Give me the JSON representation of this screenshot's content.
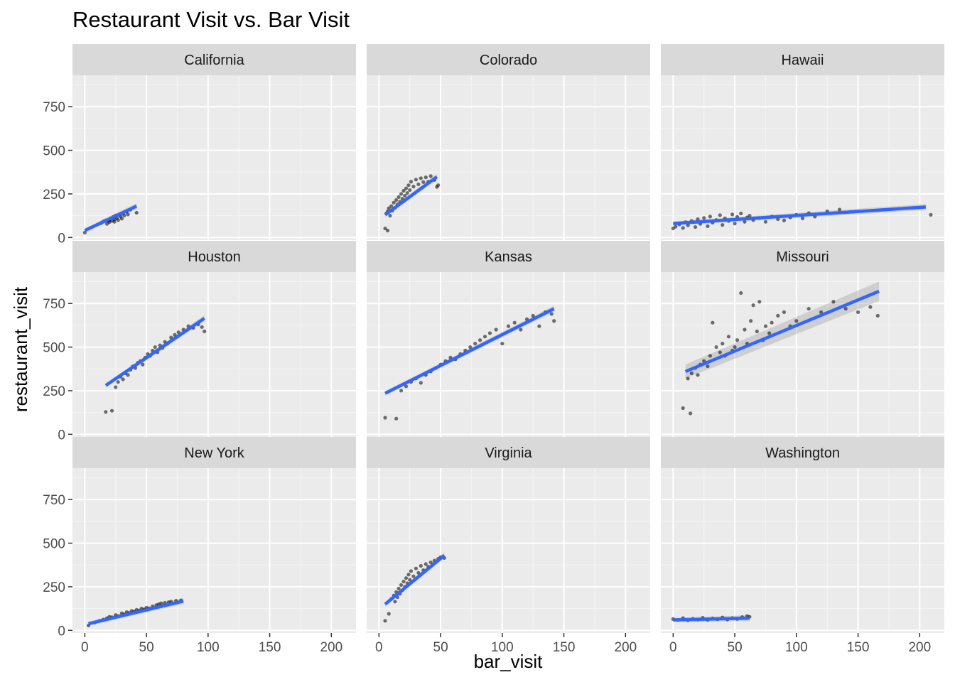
{
  "chart_data": {
    "type": "scatter",
    "title": "Restaurant Visit vs. Bar Visit",
    "xlabel": "bar_visit",
    "ylabel": "restaurant_visit",
    "xlim": [
      -10,
      220
    ],
    "ylim": [
      -15,
      930
    ],
    "xticks": [
      0,
      50,
      100,
      150,
      200
    ],
    "yticks": [
      0,
      250,
      500,
      750
    ],
    "grid": true,
    "colors": {
      "point": "#000000",
      "fit": "#3366FF",
      "panel": "#EBEBEB",
      "strip": "#D9D9D9",
      "ribbon": "#999999"
    },
    "facets": [
      {
        "name": "California",
        "fit": [
          [
            0,
            40
          ],
          [
            42,
            180
          ]
        ],
        "points": [
          [
            0,
            28
          ],
          [
            13,
            82
          ],
          [
            15,
            92
          ],
          [
            17,
            98
          ],
          [
            18,
            78
          ],
          [
            19,
            95
          ],
          [
            20,
            102
          ],
          [
            20,
            88
          ],
          [
            21,
            110
          ],
          [
            22,
            96
          ],
          [
            23,
            118
          ],
          [
            24,
            104
          ],
          [
            24,
            90
          ],
          [
            25,
            126
          ],
          [
            26,
            112
          ],
          [
            27,
            100
          ],
          [
            28,
            132
          ],
          [
            29,
            120
          ],
          [
            30,
            108
          ],
          [
            31,
            140
          ],
          [
            32,
            126
          ],
          [
            34,
            148
          ],
          [
            35,
            132
          ],
          [
            37,
            160
          ],
          [
            42,
            142
          ]
        ]
      },
      {
        "name": "Colorado",
        "fit": [
          [
            5,
            130
          ],
          [
            47,
            348
          ]
        ],
        "points": [
          [
            5,
            52
          ],
          [
            7,
            40
          ],
          [
            6,
            138
          ],
          [
            7,
            150
          ],
          [
            8,
            168
          ],
          [
            9,
            125
          ],
          [
            10,
            180
          ],
          [
            11,
            155
          ],
          [
            12,
            200
          ],
          [
            13,
            170
          ],
          [
            14,
            215
          ],
          [
            15,
            190
          ],
          [
            16,
            232
          ],
          [
            17,
            205
          ],
          [
            18,
            250
          ],
          [
            19,
            222
          ],
          [
            20,
            268
          ],
          [
            21,
            240
          ],
          [
            22,
            282
          ],
          [
            23,
            255
          ],
          [
            24,
            300
          ],
          [
            25,
            272
          ],
          [
            26,
            320
          ],
          [
            28,
            292
          ],
          [
            30,
            332
          ],
          [
            32,
            305
          ],
          [
            34,
            340
          ],
          [
            36,
            318
          ],
          [
            38,
            345
          ],
          [
            40,
            320
          ],
          [
            42,
            352
          ],
          [
            45,
            330
          ],
          [
            47,
            290
          ],
          [
            48,
            300
          ]
        ]
      },
      {
        "name": "Hawaii",
        "fit": [
          [
            0,
            80
          ],
          [
            205,
            175
          ]
        ],
        "points": [
          [
            0,
            52
          ],
          [
            2,
            62
          ],
          [
            5,
            75
          ],
          [
            8,
            55
          ],
          [
            10,
            88
          ],
          [
            12,
            70
          ],
          [
            15,
            95
          ],
          [
            18,
            60
          ],
          [
            20,
            105
          ],
          [
            22,
            78
          ],
          [
            25,
            112
          ],
          [
            28,
            65
          ],
          [
            30,
            120
          ],
          [
            32,
            85
          ],
          [
            35,
            100
          ],
          [
            38,
            128
          ],
          [
            40,
            72
          ],
          [
            42,
            110
          ],
          [
            45,
            95
          ],
          [
            48,
            132
          ],
          [
            50,
            80
          ],
          [
            52,
            118
          ],
          [
            55,
            138
          ],
          [
            58,
            90
          ],
          [
            60,
            115
          ],
          [
            62,
            125
          ],
          [
            65,
            100
          ],
          [
            70,
            112
          ],
          [
            75,
            90
          ],
          [
            80,
            120
          ],
          [
            85,
            105
          ],
          [
            90,
            98
          ],
          [
            95,
            115
          ],
          [
            100,
            130
          ],
          [
            105,
            110
          ],
          [
            110,
            140
          ],
          [
            115,
            120
          ],
          [
            125,
            150
          ],
          [
            135,
            160
          ],
          [
            209,
            130
          ]
        ]
      },
      {
        "name": "Houston",
        "fit": [
          [
            17,
            280
          ],
          [
            97,
            665
          ]
        ],
        "points": [
          [
            17,
            128
          ],
          [
            22,
            135
          ],
          [
            25,
            270
          ],
          [
            27,
            300
          ],
          [
            29,
            330
          ],
          [
            31,
            315
          ],
          [
            33,
            350
          ],
          [
            35,
            340
          ],
          [
            37,
            370
          ],
          [
            39,
            390
          ],
          [
            41,
            380
          ],
          [
            43,
            410
          ],
          [
            45,
            420
          ],
          [
            47,
            400
          ],
          [
            49,
            440
          ],
          [
            51,
            460
          ],
          [
            53,
            450
          ],
          [
            55,
            480
          ],
          [
            57,
            500
          ],
          [
            59,
            470
          ],
          [
            61,
            510
          ],
          [
            63,
            495
          ],
          [
            65,
            530
          ],
          [
            67,
            520
          ],
          [
            70,
            555
          ],
          [
            73,
            570
          ],
          [
            76,
            585
          ],
          [
            80,
            600
          ],
          [
            84,
            620
          ],
          [
            88,
            610
          ],
          [
            92,
            630
          ],
          [
            95,
            615
          ],
          [
            97,
            590
          ]
        ]
      },
      {
        "name": "Kansas",
        "fit": [
          [
            5,
            235
          ],
          [
            142,
            720
          ]
        ],
        "points": [
          [
            5,
            95
          ],
          [
            14,
            90
          ],
          [
            18,
            250
          ],
          [
            22,
            275
          ],
          [
            26,
            300
          ],
          [
            30,
            320
          ],
          [
            34,
            295
          ],
          [
            38,
            340
          ],
          [
            42,
            360
          ],
          [
            46,
            380
          ],
          [
            50,
            400
          ],
          [
            54,
            420
          ],
          [
            58,
            440
          ],
          [
            62,
            430
          ],
          [
            66,
            460
          ],
          [
            70,
            480
          ],
          [
            74,
            500
          ],
          [
            78,
            520
          ],
          [
            82,
            540
          ],
          [
            86,
            560
          ],
          [
            90,
            580
          ],
          [
            95,
            600
          ],
          [
            100,
            520
          ],
          [
            105,
            620
          ],
          [
            110,
            640
          ],
          [
            115,
            600
          ],
          [
            120,
            660
          ],
          [
            125,
            680
          ],
          [
            130,
            620
          ],
          [
            135,
            700
          ],
          [
            140,
            690
          ],
          [
            142,
            650
          ]
        ]
      },
      {
        "name": "Missouri",
        "fit": [
          [
            10,
            360
          ],
          [
            167,
            820
          ]
        ],
        "points": [
          [
            8,
            150
          ],
          [
            14,
            120
          ],
          [
            12,
            320
          ],
          [
            15,
            350
          ],
          [
            18,
            380
          ],
          [
            20,
            340
          ],
          [
            22,
            400
          ],
          [
            25,
            420
          ],
          [
            28,
            390
          ],
          [
            30,
            450
          ],
          [
            32,
            640
          ],
          [
            35,
            500
          ],
          [
            38,
            470
          ],
          [
            40,
            520
          ],
          [
            42,
            450
          ],
          [
            45,
            560
          ],
          [
            48,
            480
          ],
          [
            50,
            500
          ],
          [
            52,
            540
          ],
          [
            55,
            810
          ],
          [
            58,
            600
          ],
          [
            60,
            520
          ],
          [
            63,
            650
          ],
          [
            65,
            740
          ],
          [
            68,
            590
          ],
          [
            70,
            760
          ],
          [
            73,
            540
          ],
          [
            75,
            620
          ],
          [
            78,
            580
          ],
          [
            80,
            640
          ],
          [
            85,
            680
          ],
          [
            90,
            700
          ],
          [
            95,
            620
          ],
          [
            100,
            650
          ],
          [
            110,
            720
          ],
          [
            120,
            700
          ],
          [
            130,
            760
          ],
          [
            140,
            720
          ],
          [
            150,
            700
          ],
          [
            160,
            730
          ],
          [
            166,
            680
          ]
        ]
      },
      {
        "name": "New York",
        "fit": [
          [
            3,
            38
          ],
          [
            80,
            168
          ]
        ],
        "points": [
          [
            3,
            28
          ],
          [
            8,
            45
          ],
          [
            12,
            55
          ],
          [
            15,
            62
          ],
          [
            18,
            70
          ],
          [
            20,
            78
          ],
          [
            22,
            75
          ],
          [
            25,
            88
          ],
          [
            27,
            82
          ],
          [
            30,
            98
          ],
          [
            32,
            92
          ],
          [
            34,
            105
          ],
          [
            36,
            100
          ],
          [
            38,
            112
          ],
          [
            40,
            108
          ],
          [
            42,
            118
          ],
          [
            44,
            114
          ],
          [
            46,
            125
          ],
          [
            48,
            120
          ],
          [
            50,
            130
          ],
          [
            52,
            126
          ],
          [
            55,
            138
          ],
          [
            58,
            145
          ],
          [
            60,
            150
          ],
          [
            62,
            155
          ],
          [
            65,
            158
          ],
          [
            68,
            162
          ],
          [
            70,
            165
          ],
          [
            74,
            170
          ],
          [
            78,
            172
          ]
        ]
      },
      {
        "name": "Virginia",
        "fit": [
          [
            5,
            150
          ],
          [
            53,
            430
          ]
        ],
        "points": [
          [
            5,
            55
          ],
          [
            8,
            95
          ],
          [
            10,
            180
          ],
          [
            12,
            200
          ],
          [
            13,
            165
          ],
          [
            14,
            220
          ],
          [
            15,
            190
          ],
          [
            16,
            240
          ],
          [
            17,
            210
          ],
          [
            18,
            260
          ],
          [
            19,
            230
          ],
          [
            20,
            280
          ],
          [
            21,
            250
          ],
          [
            22,
            300
          ],
          [
            23,
            270
          ],
          [
            24,
            320
          ],
          [
            25,
            290
          ],
          [
            26,
            340
          ],
          [
            28,
            310
          ],
          [
            30,
            355
          ],
          [
            32,
            330
          ],
          [
            34,
            370
          ],
          [
            36,
            345
          ],
          [
            38,
            380
          ],
          [
            40,
            365
          ],
          [
            42,
            390
          ],
          [
            45,
            400
          ],
          [
            48,
            410
          ],
          [
            50,
            420
          ],
          [
            53,
            415
          ]
        ]
      },
      {
        "name": "Washington",
        "fit": [
          [
            0,
            60
          ],
          [
            62,
            70
          ]
        ],
        "points": [
          [
            0,
            65
          ],
          [
            4,
            60
          ],
          [
            8,
            70
          ],
          [
            12,
            58
          ],
          [
            16,
            66
          ],
          [
            20,
            62
          ],
          [
            24,
            72
          ],
          [
            28,
            60
          ],
          [
            32,
            68
          ],
          [
            36,
            64
          ],
          [
            40,
            74
          ],
          [
            44,
            62
          ],
          [
            48,
            70
          ],
          [
            52,
            66
          ],
          [
            56,
            76
          ],
          [
            60,
            82
          ],
          [
            62,
            78
          ]
        ]
      }
    ]
  }
}
